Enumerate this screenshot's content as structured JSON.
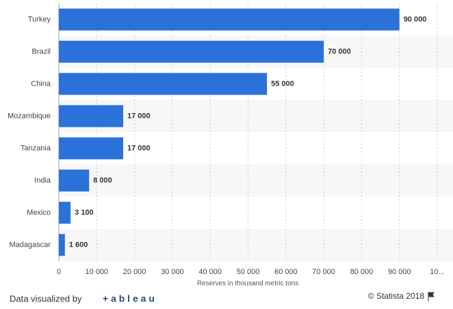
{
  "chart_data": {
    "type": "hbar",
    "categories": [
      "Turkey",
      "Brazil",
      "China",
      "Mozambique",
      "Tanzania",
      "India",
      "Mexico",
      "Madagascar"
    ],
    "values": [
      90000,
      70000,
      55000,
      17000,
      17000,
      8000,
      3100,
      1600
    ],
    "value_labels": [
      "90 000",
      "70 000",
      "55 000",
      "17 000",
      "17 000",
      "8 000",
      "3 100",
      "1 600"
    ],
    "color": "#2a72d9",
    "xlim": [
      0,
      100000
    ],
    "xticks": [
      0,
      {
        "value": 10000,
        "label": "10 000"
      },
      {
        "value": 20000,
        "label": "20 000"
      },
      {
        "value": 30000,
        "label": "30 000"
      },
      {
        "value": 40000,
        "label": "40 000"
      },
      {
        "value": 50000,
        "label": "50 000"
      },
      {
        "value": 60000,
        "label": "60 000"
      },
      {
        "value": 70000,
        "label": "70 000"
      },
      {
        "value": 80000,
        "label": "80 000"
      },
      {
        "value": 90000,
        "label": "90 000"
      },
      {
        "value": 100000,
        "label": "10..."
      }
    ],
    "xlabel": "Reserves in thousand metric tons",
    "grid": true
  },
  "footer": {
    "credit": "Data visualized by",
    "logo": "+ a b l e a u",
    "source": "© Statista 2018"
  }
}
